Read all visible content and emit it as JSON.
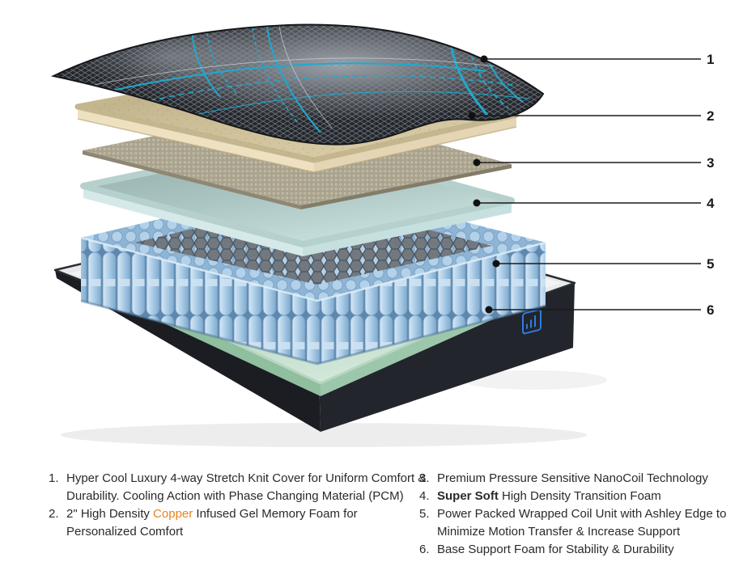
{
  "diagram": {
    "callouts": [
      {
        "label": "1"
      },
      {
        "label": "2"
      },
      {
        "label": "3"
      },
      {
        "label": "4"
      },
      {
        "label": "5"
      },
      {
        "label": "6"
      }
    ],
    "icons": {
      "brand": "ashley-edge-logo"
    }
  },
  "legend": {
    "columns": [
      {
        "items": [
          {
            "num": "1.",
            "segments": [
              {
                "t": "Hyper Cool Luxury 4-way Stretch Knit Cover for Uniform Comfort &"
              },
              {
                "br": true
              },
              {
                "t": "Durability. Cooling Action with Phase Changing Material (PCM)"
              }
            ]
          },
          {
            "num": "2.",
            "segments": [
              {
                "t": "2\" High Density "
              },
              {
                "t": "Copper",
                "style": "copper"
              },
              {
                "t": " Infused Gel Memory Foam for"
              },
              {
                "br": true
              },
              {
                "t": "Personalized Comfort"
              }
            ]
          }
        ]
      },
      {
        "items": [
          {
            "num": "3.",
            "segments": [
              {
                "t": "Premium Pressure Sensitive NanoCoil Technology"
              }
            ]
          },
          {
            "num": "4.",
            "segments": [
              {
                "t": "Super Soft",
                "style": "bold"
              },
              {
                "t": " High Density Transition Foam"
              }
            ]
          },
          {
            "num": "5.",
            "segments": [
              {
                "t": "Power Packed Wrapped Coil Unit with Ashley Edge to"
              },
              {
                "br": true
              },
              {
                "t": "Minimize Motion Transfer & Increase Support"
              }
            ]
          },
          {
            "num": "6.",
            "segments": [
              {
                "t": "Base Support Foam for Stability & Durability"
              }
            ]
          }
        ]
      }
    ]
  },
  "colors": {
    "copper_text": "#E8831D",
    "cover_accent_cyan": "#1FA9CF",
    "memory_foam_tan": "#CBBD95",
    "nanocoil_khaki": "#A9A28D",
    "transition_foam_blue": "#BFDAD8",
    "coil_blue": "#A9CBE6",
    "base_foam_green": "#AFCFBA",
    "base_shell_black": "#1B1D22",
    "callout_line": "#1A1A1A"
  }
}
